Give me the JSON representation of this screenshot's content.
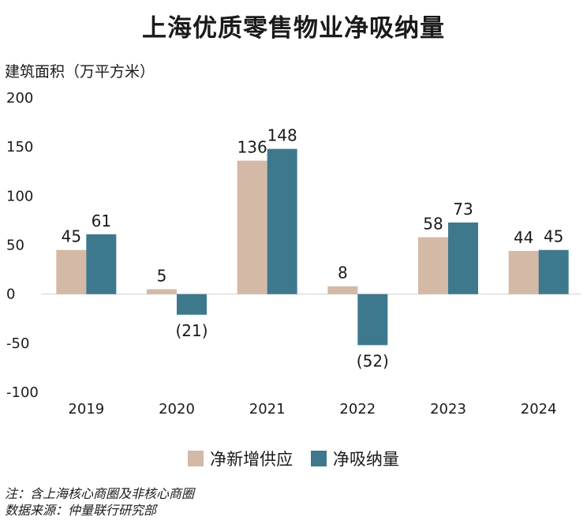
{
  "chart_data": {
    "type": "bar",
    "title": "上海优质零售物业净吸纳量",
    "ylabel": "建筑面积（万平方米）",
    "categories": [
      "2019",
      "2020",
      "2021",
      "2022",
      "2023",
      "2024"
    ],
    "series": [
      {
        "name": "净新增供应",
        "values": [
          45,
          5,
          136,
          8,
          58,
          44
        ],
        "labels": [
          "45",
          "5",
          "136",
          "8",
          "58",
          "44"
        ],
        "color": "#d4b9a6"
      },
      {
        "name": "净吸纳量",
        "values": [
          61,
          -21,
          148,
          -52,
          73,
          45
        ],
        "labels": [
          "61",
          "(21)",
          "148",
          "(52)",
          "73",
          "45"
        ],
        "color": "#3e788d"
      }
    ],
    "ylim": [
      -100,
      200
    ],
    "yticks": [
      200,
      150,
      100,
      50,
      0,
      -50,
      -100
    ],
    "grid": false,
    "legend": "bottom"
  },
  "notes": {
    "note": "注：含上海核心商圈及非核心商圈",
    "source": "数据来源：仲量联行研究部"
  }
}
